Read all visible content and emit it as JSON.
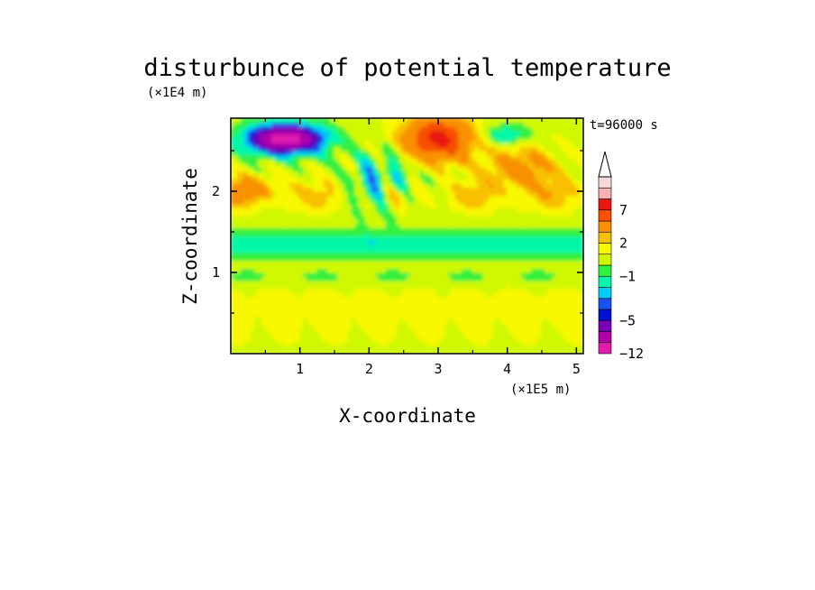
{
  "chart_data": {
    "type": "heatmap",
    "title": "disturbunce of potential temperature",
    "xlabel": "X-coordinate",
    "ylabel": "Z-coordinate",
    "x_unit": "(×1E5 m)",
    "y_unit": "(×1E4 m)",
    "time_label": "t=96000 s",
    "xlim": [
      0,
      5.1
    ],
    "ylim": [
      0,
      2.9
    ],
    "x_ticks": [
      "1",
      "2",
      "3",
      "4",
      "5"
    ],
    "y_ticks": [
      "1",
      "2"
    ],
    "colorbar": {
      "labels": [
        "7",
        "2",
        "−1",
        "−5",
        "−12"
      ],
      "levels": [
        -12,
        -9,
        -7,
        -5,
        -4,
        -3,
        -2,
        -1,
        0,
        1,
        2,
        3,
        5,
        7,
        9,
        11
      ],
      "colors": [
        "#e01cb0",
        "#b000a8",
        "#7a00b8",
        "#0010d0",
        "#1a50f0",
        "#00ccf8",
        "#00f8a8",
        "#30f040",
        "#d0f800",
        "#f8f800",
        "#f8c000",
        "#f89000",
        "#f85000",
        "#e81810",
        "#f8b0b0",
        "#f8d8d8"
      ],
      "extend": "max"
    },
    "field_description": "2D anomaly field, layered: positive bands near top with strong negative cells at upper-left, neutral green/cyan mid band near z=1.4, weak positive yellow layer below z=1"
  }
}
